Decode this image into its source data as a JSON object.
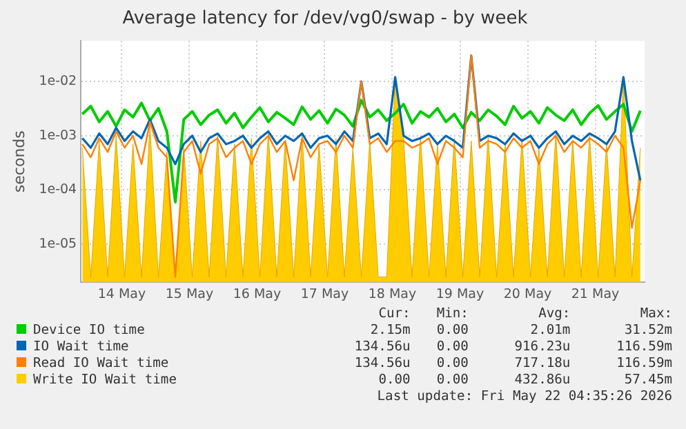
{
  "chart_data": {
    "type": "line",
    "title": "Average latency for /dev/vg0/swap - by week",
    "ylabel": "seconds",
    "log": "y",
    "grid": true,
    "legend": "bottom",
    "marker": "none",
    "line_style": "solid",
    "xlim": [
      "2026-05-13T21:30",
      "2026-05-22T05:30"
    ],
    "xticks": [
      {
        "value": "2026-05-14T12:00",
        "label": "14 May"
      },
      {
        "value": "2026-05-15T12:00",
        "label": "15 May"
      },
      {
        "value": "2026-05-16T12:00",
        "label": "16 May"
      },
      {
        "value": "2026-05-17T12:00",
        "label": "17 May"
      },
      {
        "value": "2026-05-18T12:00",
        "label": "18 May"
      },
      {
        "value": "2026-05-19T12:00",
        "label": "19 May"
      },
      {
        "value": "2026-05-20T12:00",
        "label": "20 May"
      },
      {
        "value": "2026-05-21T12:00",
        "label": "21 May"
      }
    ],
    "ylim": [
      2e-06,
      0.056
    ],
    "yticks": [
      {
        "value": 1e-05,
        "label": "1e-05"
      },
      {
        "value": 0.0001,
        "label": "1e-04"
      },
      {
        "value": 0.001,
        "label": "1e-03"
      },
      {
        "value": 0.01,
        "label": "1e-02"
      }
    ],
    "x": [
      "2026-05-13T22:00",
      "2026-05-14T01:00",
      "2026-05-14T04:00",
      "2026-05-14T07:00",
      "2026-05-14T10:00",
      "2026-05-14T13:00",
      "2026-05-14T16:00",
      "2026-05-14T19:00",
      "2026-05-14T22:00",
      "2026-05-15T01:00",
      "2026-05-15T04:00",
      "2026-05-15T07:00",
      "2026-05-15T10:00",
      "2026-05-15T13:00",
      "2026-05-15T16:00",
      "2026-05-15T19:00",
      "2026-05-15T22:00",
      "2026-05-16T01:00",
      "2026-05-16T04:00",
      "2026-05-16T07:00",
      "2026-05-16T10:00",
      "2026-05-16T13:00",
      "2026-05-16T16:00",
      "2026-05-16T19:00",
      "2026-05-16T22:00",
      "2026-05-17T01:00",
      "2026-05-17T04:00",
      "2026-05-17T07:00",
      "2026-05-17T10:00",
      "2026-05-17T13:00",
      "2026-05-17T16:00",
      "2026-05-17T19:00",
      "2026-05-17T22:00",
      "2026-05-18T01:00",
      "2026-05-18T04:00",
      "2026-05-18T07:00",
      "2026-05-18T10:00",
      "2026-05-18T13:00",
      "2026-05-18T16:00",
      "2026-05-18T19:00",
      "2026-05-18T22:00",
      "2026-05-19T01:00",
      "2026-05-19T04:00",
      "2026-05-19T07:00",
      "2026-05-19T10:00",
      "2026-05-19T13:00",
      "2026-05-19T16:00",
      "2026-05-19T19:00",
      "2026-05-19T22:00",
      "2026-05-20T01:00",
      "2026-05-20T04:00",
      "2026-05-20T07:00",
      "2026-05-20T10:00",
      "2026-05-20T13:00",
      "2026-05-20T16:00",
      "2026-05-20T19:00",
      "2026-05-20T22:00",
      "2026-05-21T01:00",
      "2026-05-21T04:00",
      "2026-05-21T07:00",
      "2026-05-21T10:00",
      "2026-05-21T13:00",
      "2026-05-21T16:00",
      "2026-05-21T19:00",
      "2026-05-21T22:00",
      "2026-05-22T01:00",
      "2026-05-22T04:00"
    ],
    "series": [
      {
        "name": "Device IO time",
        "color": "#00cc00",
        "values": [
          0.0025,
          0.0035,
          0.0018,
          0.0028,
          0.0015,
          0.003,
          0.0022,
          0.004,
          0.0019,
          0.0032,
          0.0012,
          6e-05,
          0.002,
          0.0028,
          0.0016,
          0.0024,
          0.003,
          0.0017,
          0.0026,
          0.0014,
          0.0022,
          0.0033,
          0.0018,
          0.0027,
          0.0021,
          0.0016,
          0.0034,
          0.002,
          0.0029,
          0.0017,
          0.0031,
          0.0024,
          0.0015,
          0.0045,
          0.0022,
          0.003,
          0.0019,
          0.0026,
          0.0038,
          0.0017,
          0.0028,
          0.0022,
          0.0032,
          0.0018,
          0.0025,
          0.0014,
          0.0027,
          0.0019,
          0.003,
          0.0023,
          0.0016,
          0.0035,
          0.0021,
          0.0028,
          0.0017,
          0.0033,
          0.0024,
          0.0019,
          0.003,
          0.0016,
          0.0026,
          0.0036,
          0.002,
          0.0028,
          0.0038,
          0.0012,
          0.0029
        ]
      },
      {
        "name": "IO Wait time",
        "color": "#0066b3",
        "values": [
          0.0009,
          0.0006,
          0.0011,
          0.0007,
          0.0014,
          0.0008,
          0.0012,
          0.0009,
          0.002,
          0.0008,
          0.0006,
          0.0003,
          0.0007,
          0.001,
          0.0005,
          0.0009,
          0.0011,
          0.0007,
          0.0008,
          0.001,
          0.0006,
          0.0009,
          0.0012,
          0.0007,
          0.001,
          0.0008,
          0.0011,
          0.0006,
          0.0009,
          0.001,
          0.0007,
          0.0012,
          0.0008,
          0.01,
          0.0009,
          0.0011,
          0.0007,
          0.012,
          0.001,
          0.0008,
          0.0009,
          0.0011,
          0.0007,
          0.001,
          0.0008,
          0.0006,
          0.03,
          0.0008,
          0.001,
          0.0009,
          0.0007,
          0.0011,
          0.0008,
          0.001,
          0.0006,
          0.0009,
          0.0012,
          0.0007,
          0.001,
          0.0008,
          0.0011,
          0.0009,
          0.0007,
          0.0012,
          0.012,
          0.0008,
          0.00015
        ]
      },
      {
        "name": "Read IO Wait time",
        "color": "#ff7f00",
        "values": [
          0.0007,
          0.0004,
          0.0009,
          0.0005,
          0.0012,
          0.0006,
          0.001,
          0.0003,
          0.0018,
          0.0006,
          0.0004,
          2.5e-06,
          0.0005,
          0.0008,
          0.0002,
          0.0007,
          0.0009,
          0.0004,
          0.0006,
          0.0008,
          0.0003,
          0.0007,
          0.001,
          0.0005,
          0.0008,
          0.00015,
          0.0009,
          0.0004,
          0.0007,
          0.0008,
          0.0005,
          0.001,
          0.0006,
          0.01,
          0.0007,
          0.0009,
          0.0005,
          0.0008,
          0.0008,
          0.0006,
          0.0007,
          0.0009,
          0.0003,
          0.0008,
          0.0006,
          0.0004,
          0.03,
          0.0006,
          0.0008,
          0.0007,
          0.0005,
          0.0009,
          0.0006,
          0.0008,
          0.0003,
          0.0007,
          0.001,
          0.0005,
          0.0008,
          0.0006,
          0.0009,
          0.0007,
          0.0005,
          0.001,
          0.0006,
          2e-05,
          0.00015
        ]
      },
      {
        "name": "Write IO Wait time",
        "color": "#ffcc00",
        "type": "area",
        "values": [
          0.0006,
          2.5e-06,
          0.0008,
          2.5e-06,
          0.001,
          2.5e-06,
          0.0007,
          2.5e-06,
          0.0015,
          2.5e-06,
          0.0005,
          2.5e-06,
          0.0006,
          2.5e-06,
          0.0008,
          2.5e-06,
          0.001,
          2.5e-06,
          0.0007,
          2.5e-06,
          0.0009,
          2.5e-06,
          0.0011,
          2.5e-06,
          0.0008,
          2.5e-06,
          0.001,
          2.5e-06,
          0.0007,
          2.5e-06,
          0.0009,
          2.5e-06,
          0.0006,
          2.5e-06,
          0.0008,
          2.5e-06,
          2.5e-06,
          0.012,
          0.0009,
          2.5e-06,
          0.001,
          2.5e-06,
          0.0007,
          2.5e-06,
          0.0009,
          2.5e-06,
          0.0008,
          2.5e-06,
          0.001,
          2.5e-06,
          0.0007,
          2.5e-06,
          0.0009,
          2.5e-06,
          0.0006,
          2.5e-06,
          0.0011,
          2.5e-06,
          0.0008,
          2.5e-06,
          0.001,
          2.5e-06,
          0.0007,
          2.5e-06,
          0.012,
          2.5e-06,
          0.0006
        ]
      }
    ],
    "annotations": [
      "Cur:",
      "Min:",
      "Avg:",
      "Max:",
      "2.15m",
      "0.00",
      "2.01m",
      "31.52m",
      "134.56u",
      "0.00",
      "916.23u",
      "116.59m",
      "134.56u",
      "0.00",
      "717.18u",
      "116.59m",
      "0.00",
      "0.00",
      "432.86u",
      "57.45m",
      "Last update: Fri May 22 04:35:26 2026"
    ]
  }
}
